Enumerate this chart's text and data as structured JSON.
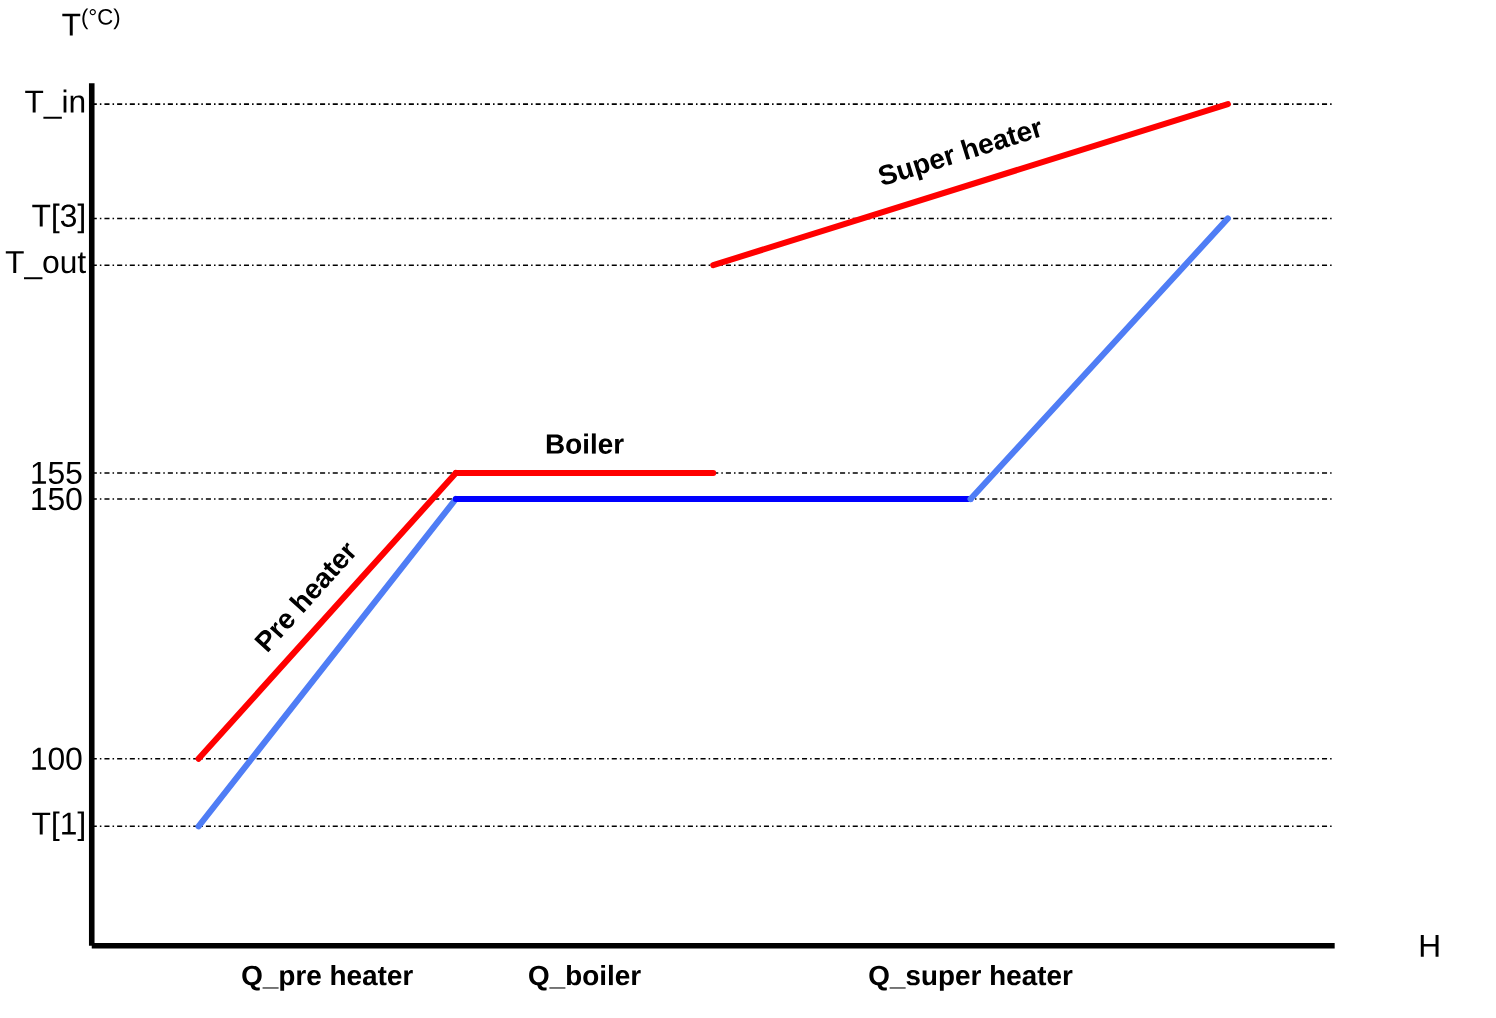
{
  "chart_data": {
    "type": "line",
    "xlabel": "H",
    "ylabel": "T$^{(°C)}$",
    "categories": [
      null,
      "Q_pre heater",
      null,
      "Q_boiler",
      null,
      null,
      "Q_super heater",
      null,
      null
    ],
    "ylim": [
      64,
      230
    ],
    "yticks": [
      100,
      150,
      155
    ],
    "grid": "y",
    "ref_lines": [
      {
        "axis": "y",
        "value": 87,
        "label": "T[1]"
      },
      {
        "axis": "y",
        "value": 195,
        "label": "T_out"
      },
      {
        "axis": "y",
        "value": 204,
        "label": "T[3]"
      },
      {
        "axis": "y",
        "value": 226,
        "label": "T_in"
      }
    ],
    "series": [
      {
        "name": "Super heater",
        "color": "#ff0000",
        "values": [
          null,
          null,
          null,
          null,
          195,
          null,
          null,
          null,
          226
        ]
      },
      {
        "name": "Boiler",
        "color": "#ff0000",
        "values": [
          null,
          null,
          155,
          null,
          155,
          null,
          null,
          null,
          null
        ]
      },
      {
        "name": "Pre heater",
        "color": "#ff0000",
        "values": [
          100,
          null,
          155,
          null,
          null,
          null,
          null,
          null,
          null
        ]
      },
      {
        "color": "#4f7df5",
        "values": [
          87,
          null,
          150,
          null,
          null,
          null,
          null,
          null,
          null
        ]
      },
      {
        "color": "#0000ff",
        "values": [
          null,
          null,
          150,
          null,
          null,
          null,
          150,
          null,
          null
        ]
      },
      {
        "color": "#4f7df5",
        "values": [
          null,
          null,
          null,
          null,
          null,
          null,
          150,
          null,
          204
        ]
      }
    ]
  }
}
